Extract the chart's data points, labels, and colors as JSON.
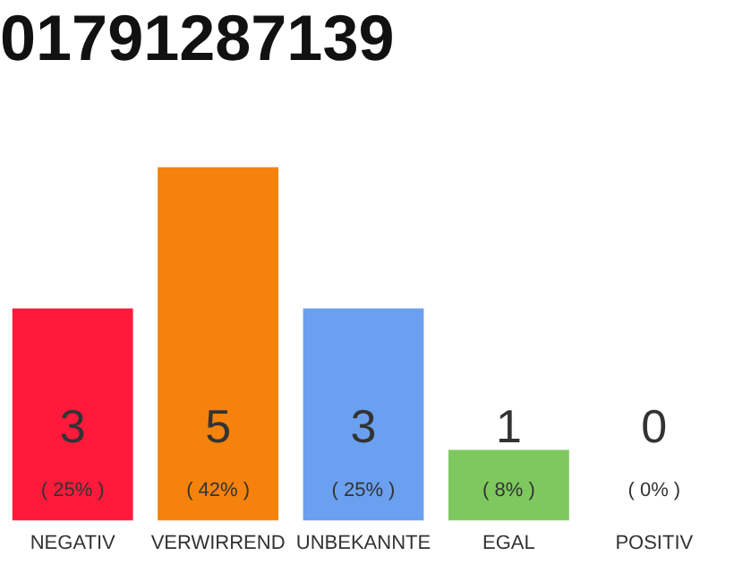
{
  "chart_data": {
    "type": "bar",
    "title": "01791287139",
    "categories": [
      "NEGATIV",
      "VERWIRREND",
      "UNBEKANNTE",
      "EGAL",
      "POSITIV"
    ],
    "values": [
      3,
      5,
      3,
      1,
      0
    ],
    "colors": [
      "#ff1a3c",
      "#f5820c",
      "#6aa0ef",
      "#7dc95e",
      "#cccccc"
    ],
    "ylim": [
      0,
      5
    ],
    "value_labels": [
      "3\n( 25% )",
      "5\n( 42% )",
      "3\n( 25% )",
      "1\n( 8% )",
      "0\n( 0% )"
    ],
    "grid": false,
    "legend": false,
    "tick_labels": "x"
  }
}
